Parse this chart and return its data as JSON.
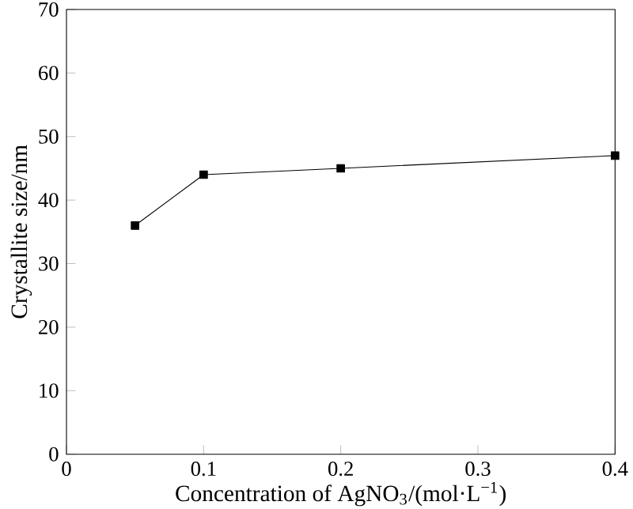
{
  "chart_data": {
    "type": "line",
    "xlabel": "Concentration of AgNO$_{3}$/(mol·L$^{−1}$)",
    "ylabel": "Crystallite size/nm",
    "x": [
      0.05,
      0.1,
      0.2,
      0.4
    ],
    "values": [
      36,
      44,
      45,
      47
    ],
    "color": "#000000",
    "marker": "square",
    "line_style": "solid",
    "xlim": [
      0,
      0.4
    ],
    "xticks": [
      0,
      0.1,
      0.2,
      0.3,
      0.4
    ],
    "ylim": [
      0,
      70
    ],
    "yticks": [
      0,
      10,
      20,
      30,
      40,
      50,
      60,
      70
    ],
    "grid": false
  }
}
